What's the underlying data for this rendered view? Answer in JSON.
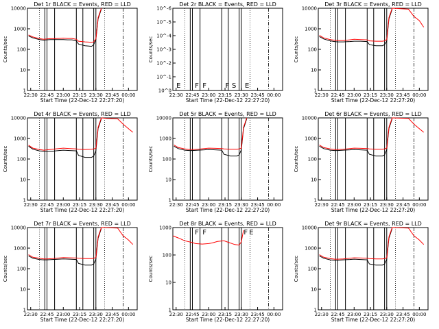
{
  "colors": {
    "events": "#000000",
    "lld": "#ff0000",
    "background": "#ffffff"
  },
  "ylabel": "Counts/sec",
  "xlabel": "Start Time (22-Dec-12 22:27:20)",
  "xticks": [
    "22:30",
    "22:45",
    "23:00",
    "23:15",
    "23:30",
    "23:45",
    "00:00"
  ],
  "chart_data": [
    {
      "type": "line",
      "title": "Det 1r BLACK = Events, RED = LLD",
      "ylim": [
        1,
        10000
      ],
      "log_y": true,
      "yticks": [
        "1",
        "10",
        "100",
        "1000",
        "10000"
      ],
      "series": [
        {
          "name": "Events",
          "color": "#000000",
          "x": [
            "22:28",
            "22:32",
            "22:38",
            "22:42",
            "22:45",
            "22:48",
            "22:52",
            "22:56",
            "23:00",
            "23:04",
            "23:08",
            "23:12",
            "23:14",
            "23:20",
            "23:26",
            "23:28",
            "23:30",
            "23:32",
            "23:35"
          ],
          "y": [
            450,
            360,
            300,
            280,
            290,
            300,
            300,
            300,
            300,
            290,
            290,
            260,
            180,
            150,
            140,
            170,
            300,
            3000,
            9000
          ]
        },
        {
          "name": "LLD",
          "color": "#ff0000",
          "x": [
            "22:28",
            "22:32",
            "22:38",
            "22:42",
            "22:45",
            "22:48",
            "22:52",
            "22:56",
            "23:00",
            "23:04",
            "23:08",
            "23:12",
            "23:14",
            "23:20",
            "23:26",
            "23:28",
            "23:30",
            "23:32",
            "23:35"
          ],
          "y": [
            500,
            400,
            330,
            310,
            320,
            330,
            330,
            340,
            350,
            340,
            340,
            310,
            250,
            230,
            220,
            230,
            320,
            3500,
            10000
          ]
        }
      ]
    },
    {
      "type": "line",
      "title": "Det 2r BLACK = Events, RED = LLD",
      "ylim": [
        1,
        1e-06
      ],
      "log_y": true,
      "yticks": [
        "10^0",
        "10^-1",
        "10^-2",
        "10^-3",
        "10^-4",
        "10^-5",
        "10^-6"
      ],
      "annotations": [
        "E",
        "F",
        "F",
        "F",
        "S",
        "E"
      ],
      "series": []
    },
    {
      "type": "line",
      "title": "Det 3r BLACK = Events, RED = LLD",
      "ylim": [
        1,
        10000
      ],
      "log_y": true,
      "yticks": [
        "1",
        "10",
        "100",
        "1000",
        "10000"
      ],
      "series": [
        {
          "name": "Events",
          "color": "#000000",
          "x": [
            "22:28",
            "22:32",
            "22:38",
            "22:42",
            "22:45",
            "22:50",
            "22:56",
            "23:00",
            "23:06",
            "23:12",
            "23:14",
            "23:20",
            "23:26",
            "23:28",
            "23:30",
            "23:32",
            "23:35"
          ],
          "y": [
            420,
            320,
            260,
            240,
            230,
            230,
            240,
            250,
            250,
            240,
            170,
            150,
            150,
            170,
            250,
            3000,
            9000
          ]
        },
        {
          "name": "LLD",
          "color": "#ff0000",
          "x": [
            "22:28",
            "22:32",
            "22:38",
            "22:42",
            "22:45",
            "22:50",
            "22:56",
            "23:00",
            "23:06",
            "23:12",
            "23:14",
            "23:20",
            "23:26",
            "23:28",
            "23:30",
            "23:32",
            "23:35",
            "23:50",
            "23:55",
            "00:00",
            "00:04"
          ],
          "y": [
            480,
            360,
            300,
            280,
            270,
            270,
            290,
            310,
            300,
            290,
            260,
            250,
            250,
            260,
            300,
            3500,
            10000,
            9000,
            4000,
            2500,
            1200
          ]
        }
      ]
    },
    {
      "type": "line",
      "title": "Det 4r BLACK = Events, RED = LLD",
      "ylim": [
        1,
        10000
      ],
      "log_y": true,
      "yticks": [
        "1",
        "10",
        "100",
        "1000",
        "10000"
      ],
      "series": [
        {
          "name": "Events",
          "color": "#000000",
          "x": [
            "22:28",
            "22:32",
            "22:38",
            "22:42",
            "22:45",
            "22:50",
            "22:56",
            "23:00",
            "23:06",
            "23:12",
            "23:14",
            "23:20",
            "23:26",
            "23:28",
            "23:30",
            "23:32",
            "23:35"
          ],
          "y": [
            420,
            300,
            250,
            240,
            240,
            240,
            260,
            270,
            260,
            250,
            150,
            120,
            120,
            140,
            250,
            3000,
            9000
          ]
        },
        {
          "name": "LLD",
          "color": "#ff0000",
          "x": [
            "22:28",
            "22:32",
            "22:38",
            "22:42",
            "22:45",
            "22:50",
            "22:56",
            "23:00",
            "23:06",
            "23:12",
            "23:14",
            "23:20",
            "23:26",
            "23:28",
            "23:30",
            "23:32",
            "23:35",
            "23:40",
            "23:50",
            "23:55",
            "00:00",
            "00:04"
          ],
          "y": [
            470,
            340,
            290,
            270,
            280,
            300,
            320,
            340,
            320,
            310,
            300,
            290,
            300,
            310,
            330,
            3500,
            10000,
            9500,
            9000,
            5000,
            3000,
            2000
          ]
        }
      ]
    },
    {
      "type": "line",
      "title": "Det 5r BLACK = Events, RED = LLD",
      "ylim": [
        1,
        10000
      ],
      "log_y": true,
      "yticks": [
        "1",
        "10",
        "100",
        "1000",
        "10000"
      ],
      "series": [
        {
          "name": "Events",
          "color": "#000000",
          "x": [
            "22:28",
            "22:32",
            "22:38",
            "22:42",
            "22:45",
            "22:50",
            "22:56",
            "23:00",
            "23:06",
            "23:12",
            "23:14",
            "23:20",
            "23:26",
            "23:28",
            "23:30",
            "23:32",
            "23:35"
          ],
          "y": [
            420,
            320,
            270,
            260,
            260,
            270,
            280,
            290,
            280,
            270,
            170,
            140,
            140,
            160,
            280,
            3000,
            9000
          ]
        },
        {
          "name": "LLD",
          "color": "#ff0000",
          "x": [
            "22:28",
            "22:32",
            "22:38",
            "22:42",
            "22:45",
            "22:50",
            "22:56",
            "23:00",
            "23:06",
            "23:12",
            "23:14",
            "23:20",
            "23:26",
            "23:28",
            "23:30",
            "23:32",
            "23:35"
          ],
          "y": [
            480,
            360,
            310,
            290,
            290,
            300,
            320,
            340,
            330,
            320,
            310,
            300,
            300,
            310,
            340,
            3500,
            10000
          ]
        }
      ]
    },
    {
      "type": "line",
      "title": "Det 6r BLACK = Events, RED = LLD",
      "ylim": [
        1,
        10000
      ],
      "log_y": true,
      "yticks": [
        "1",
        "10",
        "100",
        "1000",
        "10000"
      ],
      "series": [
        {
          "name": "Events",
          "color": "#000000",
          "x": [
            "22:28",
            "22:32",
            "22:38",
            "22:42",
            "22:45",
            "22:50",
            "22:56",
            "23:00",
            "23:06",
            "23:12",
            "23:14",
            "23:20",
            "23:26",
            "23:28",
            "23:30",
            "23:32",
            "23:35"
          ],
          "y": [
            420,
            320,
            270,
            260,
            260,
            270,
            280,
            290,
            280,
            270,
            170,
            140,
            140,
            160,
            280,
            3000,
            9000
          ]
        },
        {
          "name": "LLD",
          "color": "#ff0000",
          "x": [
            "22:28",
            "22:32",
            "22:38",
            "22:42",
            "22:45",
            "22:50",
            "22:56",
            "23:00",
            "23:06",
            "23:12",
            "23:14",
            "23:20",
            "23:26",
            "23:28",
            "23:30",
            "23:32",
            "23:35",
            "23:50",
            "23:55",
            "00:00",
            "00:04"
          ],
          "y": [
            480,
            360,
            310,
            290,
            290,
            300,
            320,
            340,
            330,
            320,
            310,
            300,
            300,
            310,
            340,
            3500,
            10000,
            9500,
            5000,
            3000,
            2000
          ]
        }
      ]
    },
    {
      "type": "line",
      "title": "Det 7r BLACK = Events, RED = LLD",
      "ylim": [
        1,
        10000
      ],
      "log_y": true,
      "yticks": [
        "1",
        "10",
        "100",
        "1000",
        "10000"
      ],
      "series": [
        {
          "name": "Events",
          "color": "#000000",
          "x": [
            "22:28",
            "22:32",
            "22:38",
            "22:42",
            "22:45",
            "22:50",
            "22:56",
            "23:00",
            "23:06",
            "23:12",
            "23:14",
            "23:20",
            "23:26",
            "23:28",
            "23:30",
            "23:32",
            "23:35"
          ],
          "y": [
            420,
            320,
            280,
            270,
            270,
            280,
            290,
            300,
            290,
            280,
            180,
            150,
            150,
            170,
            290,
            3000,
            9000
          ]
        },
        {
          "name": "LLD",
          "color": "#ff0000",
          "x": [
            "22:28",
            "22:32",
            "22:38",
            "22:42",
            "22:45",
            "22:50",
            "22:56",
            "23:00",
            "23:06",
            "23:12",
            "23:14",
            "23:20",
            "23:26",
            "23:28",
            "23:30",
            "23:32",
            "23:35",
            "23:50",
            "23:55",
            "00:00",
            "00:04"
          ],
          "y": [
            480,
            360,
            320,
            300,
            300,
            310,
            330,
            350,
            340,
            330,
            320,
            310,
            310,
            320,
            350,
            3500,
            10000,
            9500,
            4000,
            2500,
            1500
          ]
        }
      ]
    },
    {
      "type": "line",
      "title": "Det 8r BLACK = Events, RED = LLD",
      "ylim": [
        1,
        1000
      ],
      "log_y": true,
      "yticks": [
        "1",
        "10",
        "100",
        "1000"
      ],
      "annotations": [
        "F",
        "F",
        "F",
        "E"
      ],
      "series": [
        {
          "name": "LLD",
          "color": "#ff0000",
          "x": [
            "22:27",
            "22:32",
            "22:38",
            "22:44",
            "22:48",
            "22:54",
            "23:00",
            "23:04",
            "23:08",
            "23:14",
            "23:18",
            "23:24",
            "23:28",
            "23:30",
            "23:32"
          ],
          "y": [
            500,
            420,
            330,
            290,
            260,
            250,
            260,
            280,
            310,
            330,
            290,
            240,
            230,
            300,
            800
          ]
        }
      ]
    },
    {
      "type": "line",
      "title": "Det 9r BLACK = Events, RED = LLD",
      "ylim": [
        1,
        10000
      ],
      "log_y": true,
      "yticks": [
        "1",
        "10",
        "100",
        "1000",
        "10000"
      ],
      "series": [
        {
          "name": "Events",
          "color": "#000000",
          "x": [
            "22:28",
            "22:32",
            "22:38",
            "22:42",
            "22:45",
            "22:50",
            "22:56",
            "23:00",
            "23:06",
            "23:12",
            "23:14",
            "23:20",
            "23:26",
            "23:28",
            "23:30",
            "23:32",
            "23:35"
          ],
          "y": [
            420,
            320,
            270,
            260,
            260,
            270,
            280,
            290,
            280,
            270,
            170,
            150,
            150,
            170,
            280,
            3000,
            9000
          ]
        },
        {
          "name": "LLD",
          "color": "#ff0000",
          "x": [
            "22:28",
            "22:32",
            "22:38",
            "22:42",
            "22:45",
            "22:50",
            "22:56",
            "23:00",
            "23:06",
            "23:12",
            "23:14",
            "23:20",
            "23:26",
            "23:28",
            "23:30",
            "23:32",
            "23:35",
            "23:50",
            "23:55",
            "00:00",
            "00:04"
          ],
          "y": [
            480,
            360,
            310,
            290,
            290,
            300,
            320,
            340,
            330,
            320,
            310,
            300,
            300,
            310,
            340,
            3500,
            10000,
            9500,
            4000,
            2500,
            1500
          ]
        }
      ]
    }
  ],
  "vlines_solid": [
    "22:43",
    "22:45",
    "22:52",
    "23:12",
    "23:18",
    "23:28",
    "23:30"
  ],
  "vlines_dotted": [
    "22:38",
    "23:38"
  ],
  "vline_dashdot": "23:55"
}
